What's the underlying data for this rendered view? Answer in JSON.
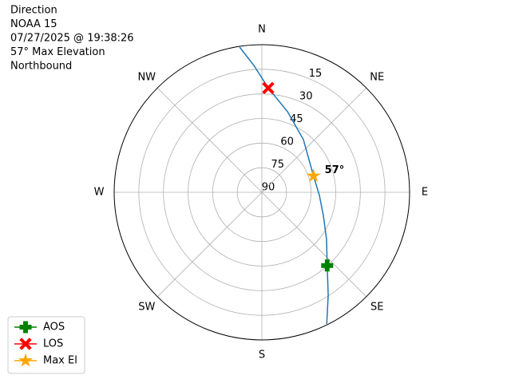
{
  "chart_data": {
    "type": "polar",
    "annotations": [
      "Direction",
      "NOAA 15",
      "07/27/2025 @ 19:38:26",
      "57° Max Elevation",
      "Northbound"
    ],
    "rlim": [
      90,
      0
    ],
    "rticks": [
      15,
      30,
      45,
      60,
      75,
      90
    ],
    "thetaticks": [
      {
        "value": 0,
        "label": "N"
      },
      {
        "value": 45,
        "label": "NE"
      },
      {
        "value": 90,
        "label": "E"
      },
      {
        "value": 135,
        "label": "SE"
      },
      {
        "value": 180,
        "label": "S"
      },
      {
        "value": 225,
        "label": "SW"
      },
      {
        "value": 270,
        "label": "W"
      },
      {
        "value": 315,
        "label": "NW"
      }
    ],
    "grid": true,
    "legend": "lower left",
    "series": [
      {
        "color": "#1f77b4",
        "marker": "none",
        "theta": [
          153.8,
          147.2,
          138.3,
          126,
          110.6,
          93.2,
          72.4,
          38.2,
          17.6,
          3.5,
          356.4,
          351.3
        ],
        "r": [
          0.5,
          15.4,
          30.2,
          41.3,
          50,
          54.9,
          57,
          49.1,
          38.4,
          26.3,
          12.5,
          0.5
        ]
      },
      {
        "name": "AOS",
        "color": "green",
        "marker": "plus",
        "theta": [
          138.3
        ],
        "r": [
          30.2
        ]
      },
      {
        "name": "LOS",
        "color": "red",
        "marker": "x",
        "theta": [
          3.5
        ],
        "r": [
          26.3
        ]
      },
      {
        "name": "Max El",
        "color": "orange",
        "marker": "star",
        "theta": [
          72.4
        ],
        "r": [
          57
        ],
        "value_labels": [
          "57°"
        ]
      }
    ]
  }
}
